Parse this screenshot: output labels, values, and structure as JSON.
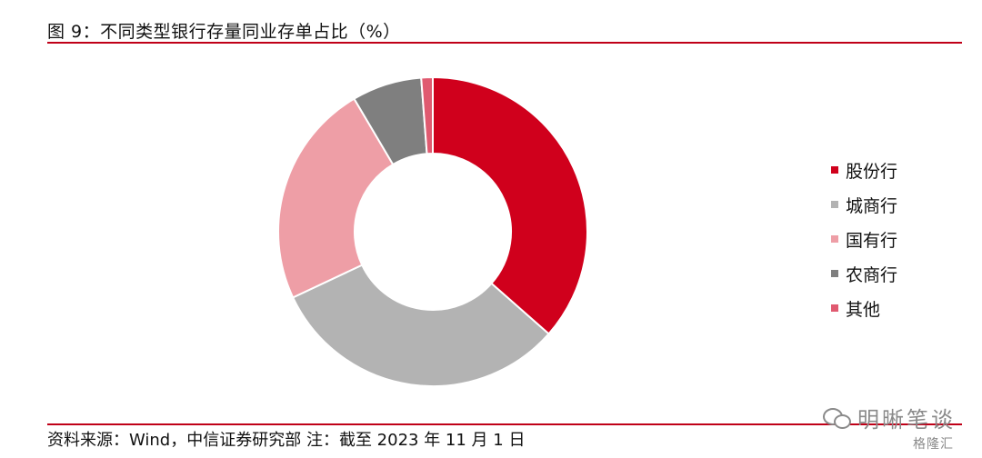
{
  "chart_data": {
    "type": "pie",
    "style": "donut",
    "title": "图 9：不同类型银行存量同业存单占比（%）",
    "categories": [
      "股份行",
      "城商行",
      "国有行",
      "农商行",
      "其他"
    ],
    "values": [
      36.5,
      31.5,
      23.5,
      7.3,
      1.2
    ],
    "colors": [
      "#d0001c",
      "#b3b3b3",
      "#ee9ea6",
      "#7f7f7f",
      "#e05a70"
    ],
    "legend_position": "right",
    "start_angle_deg": 0,
    "direction": "clockwise"
  },
  "footer": {
    "source": "资料来源：Wind，中信证券研究部   注：截至 2023 年 11 月 1 日"
  },
  "watermark": {
    "text": "明晰笔谈",
    "corner": "格隆汇"
  }
}
